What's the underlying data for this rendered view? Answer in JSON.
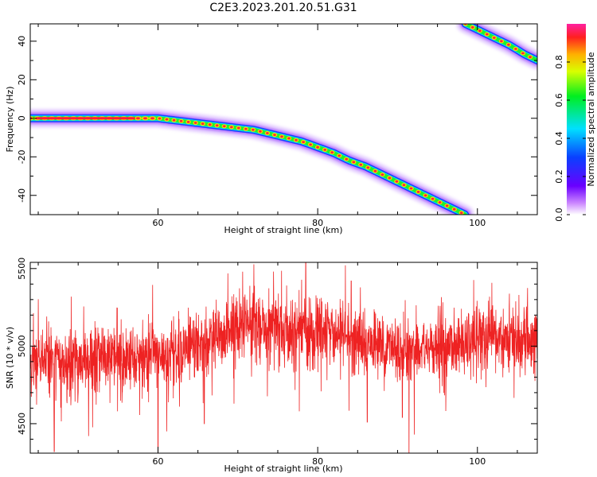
{
  "title": "C2E3.2023.201.20.51.G31",
  "chart_data": [
    {
      "type": "heatmap",
      "xlabel": "Height of straight line (km)",
      "ylabel": "Frequency (Hz)",
      "xlim": [
        44,
        107.5
      ],
      "ylim": [
        -50,
        49
      ],
      "xticks": [
        60,
        80,
        100
      ],
      "yticks": [
        -40,
        -20,
        0,
        20,
        40
      ],
      "colorbar": {
        "label": "Normalized spectral amplitude",
        "range": [
          0.0,
          1.0
        ],
        "ticks": [
          0.0,
          0.2,
          0.4,
          0.6,
          0.8
        ],
        "colormap": "hsv-rainbow (violet-blue-cyan-green-yellow-red-magenta)"
      },
      "ridge_main": {
        "x": [
          44,
          48,
          52,
          56,
          60,
          62,
          64,
          66,
          68,
          70,
          72,
          74,
          76,
          78,
          80,
          82,
          84,
          86,
          88,
          90,
          92,
          94,
          96,
          98.5
        ],
        "y": [
          0,
          0,
          0,
          0,
          0,
          -1,
          -2,
          -3,
          -4,
          -5,
          -6,
          -8,
          -10,
          -12,
          -15,
          -18,
          -22,
          -25,
          -29,
          -33,
          -37,
          -41,
          -45,
          -50
        ]
      },
      "ridge_alias": {
        "x": [
          98.5,
          100,
          102,
          104,
          106,
          107.5
        ],
        "y": [
          49,
          46,
          42,
          38,
          33,
          30
        ]
      }
    },
    {
      "type": "line",
      "xlabel": "Height of straight line (km)",
      "ylabel": "SNR (10 * v/v)",
      "xlim": [
        44,
        107.5
      ],
      "ylim": [
        4310,
        5540
      ],
      "xticks": [
        60,
        80,
        100
      ],
      "yticks": [
        4500,
        5000,
        5500
      ],
      "series": [
        {
          "color": "#ee2222",
          "trend_x": [
            44,
            50,
            55,
            60,
            63,
            66,
            70,
            75,
            80,
            84,
            88,
            92,
            96,
            100,
            104,
            107.5
          ],
          "trend_y": [
            4900,
            4900,
            4910,
            4930,
            4980,
            5020,
            5110,
            5120,
            5100,
            5050,
            5000,
            4980,
            4990,
            5040,
            5050,
            4990
          ],
          "noise_std": 110,
          "dips": [
            {
              "x": 47.0,
              "y": 4320
            },
            {
              "x": 51.3,
              "y": 4420
            },
            {
              "x": 60.0,
              "y": 4310
            },
            {
              "x": 61.1,
              "y": 4450
            },
            {
              "x": 65.8,
              "y": 4500
            },
            {
              "x": 77.7,
              "y": 4580
            },
            {
              "x": 86.2,
              "y": 4510
            },
            {
              "x": 90.6,
              "y": 4540
            },
            {
              "x": 92.1,
              "y": 4430
            }
          ],
          "peaks": [
            {
              "x": 70.6,
              "y": 5480
            },
            {
              "x": 78.5,
              "y": 5540
            },
            {
              "x": 84.2,
              "y": 5420
            },
            {
              "x": 105.2,
              "y": 5330
            }
          ]
        }
      ]
    }
  ]
}
